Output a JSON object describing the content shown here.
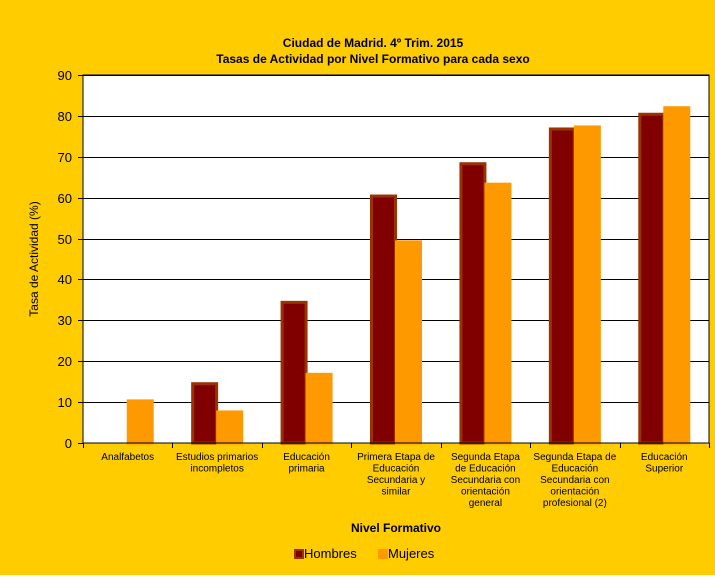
{
  "colors": {
    "background": "#FFCC00",
    "plot_area": "#FFFFFF",
    "hombres_fill": "#800000",
    "hombres_edge": "#993300",
    "mujeres_fill": "#FF9900",
    "mujeres_edge": "#FF9900",
    "text": "#000000",
    "grid": "#000000"
  },
  "chart_data": {
    "type": "bar",
    "title": "Ciudad de Madrid. 4º Trim. 2015",
    "subtitle": "Tasas de Actividad por Nivel Formativo para cada sexo",
    "xlabel": "Nivel Formativo",
    "ylabel": "Tasa de Actividad (%)",
    "ylim": [
      0,
      90
    ],
    "yticks": [
      0,
      10,
      20,
      30,
      40,
      50,
      60,
      70,
      80,
      90
    ],
    "grid": "horizontal",
    "legend": "bottom",
    "categories": [
      "Analfabetos",
      "Estudios primarios incompletos",
      "Educación primaria",
      "Primera Etapa de Educación Secundaria y similar",
      "Segunda Etapa de Educación Secundaria con orientación general",
      "Segunda Etapa de Educación Secundaria con orientación profesional (2)",
      "Educación Superior"
    ],
    "category_lines": [
      [
        "Analfabetos"
      ],
      [
        "Estudios primarios",
        "incompletos"
      ],
      [
        "Educación",
        "primaria"
      ],
      [
        "Primera Etapa de",
        "Educación",
        "Secundaria y",
        "similar"
      ],
      [
        "Segunda Etapa",
        "de Educación",
        "Secundaria con",
        "orientación",
        "general"
      ],
      [
        "Segunda Etapa de",
        "Educación",
        "Secundaria con",
        "orientación",
        "profesional (2)"
      ],
      [
        "Educación",
        "Superior"
      ]
    ],
    "series": [
      {
        "name": "Hombres",
        "values": [
          0,
          14.5,
          34.4,
          60.4,
          68.3,
          76.8,
          80.4
        ]
      },
      {
        "name": "Mujeres",
        "values": [
          10.3,
          7.6,
          16.8,
          49.2,
          63.3,
          77.3,
          82.0
        ]
      }
    ]
  }
}
